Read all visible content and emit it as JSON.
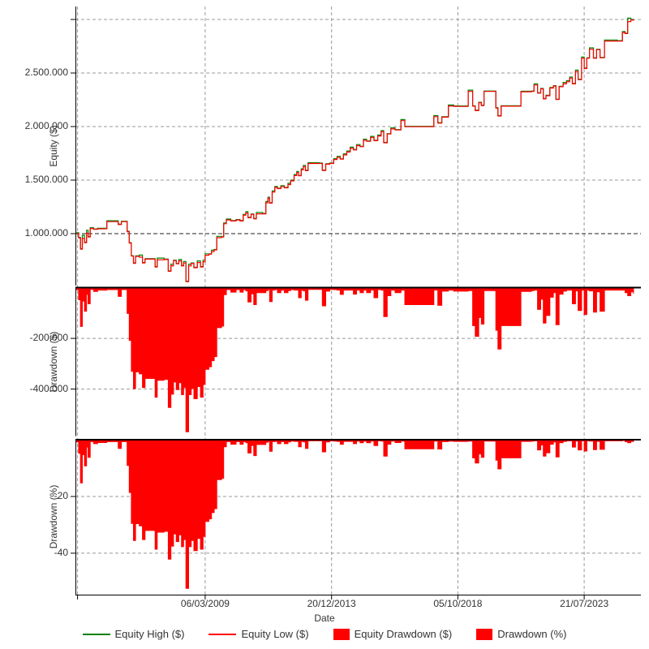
{
  "chart_data": {
    "type": "line",
    "description": "Backtest equity curve with drawdown panels",
    "xlabel": "Date",
    "x_unit": "decimal_year",
    "xlim": [
      2004.26,
      2025.7
    ],
    "grid": "dashed",
    "legend_position": "bottom",
    "x_ticks": [
      {
        "x": 2004.34,
        "label": ""
      },
      {
        "x": 2009.18,
        "label": "06/03/2009"
      },
      {
        "x": 2013.97,
        "label": "20/12/2013"
      },
      {
        "x": 2018.76,
        "label": "05/10/2018"
      },
      {
        "x": 2023.55,
        "label": "21/07/2023"
      }
    ],
    "x": [
      2004.3,
      2004.38,
      2004.45,
      2004.52,
      2004.6,
      2004.68,
      2004.74,
      2004.82,
      2004.95,
      2005.1,
      2005.45,
      2005.88,
      2006.0,
      2006.12,
      2006.22,
      2006.3,
      2006.38,
      2006.46,
      2006.54,
      2006.68,
      2006.8,
      2006.9,
      2007.15,
      2007.28,
      2007.36,
      2007.62,
      2007.78,
      2007.88,
      2007.98,
      2008.08,
      2008.18,
      2008.28,
      2008.36,
      2008.45,
      2008.55,
      2008.65,
      2008.75,
      2008.88,
      2009.0,
      2009.1,
      2009.18,
      2009.32,
      2009.42,
      2009.52,
      2009.62,
      2009.8,
      2009.88,
      2009.98,
      2010.15,
      2010.35,
      2010.5,
      2010.62,
      2010.72,
      2010.8,
      2010.92,
      2011.02,
      2011.12,
      2011.35,
      2011.48,
      2011.56,
      2011.62,
      2011.72,
      2011.82,
      2011.92,
      2012.05,
      2012.18,
      2012.32,
      2012.42,
      2012.55,
      2012.65,
      2012.72,
      2012.82,
      2012.9,
      2012.98,
      2013.08,
      2013.5,
      2013.62,
      2013.75,
      2013.9,
      2014.05,
      2014.18,
      2014.3,
      2014.42,
      2014.55,
      2014.68,
      2014.8,
      2014.92,
      2015.05,
      2015.18,
      2015.3,
      2015.45,
      2015.58,
      2015.72,
      2015.85,
      2015.95,
      2016.08,
      2016.22,
      2016.38,
      2016.6,
      2016.75,
      2017.75,
      2017.85,
      2018.0,
      2018.15,
      2018.4,
      2018.6,
      2019.15,
      2019.32,
      2019.42,
      2019.55,
      2019.65,
      2019.75,
      2020.1,
      2020.2,
      2020.28,
      2020.4,
      2021.05,
      2021.15,
      2021.55,
      2021.65,
      2021.78,
      2021.9,
      2022.0,
      2022.1,
      2022.25,
      2022.38,
      2022.48,
      2022.6,
      2022.75,
      2022.88,
      2023.0,
      2023.1,
      2023.22,
      2023.32,
      2023.45,
      2023.55,
      2023.65,
      2023.75,
      2023.9,
      2024.02,
      2024.15,
      2024.32,
      2024.8,
      2025.0,
      2025.1,
      2025.2,
      2025.32,
      2025.42
    ],
    "panels": [
      {
        "id": "equity",
        "ylabel": "Equity ($)",
        "ylim": [
          515000,
          3121000
        ],
        "yticks": [
          {
            "v": 3000000,
            "label": ""
          },
          {
            "v": 2500000,
            "label": "2.500.000"
          },
          {
            "v": 2000000,
            "label": "2.000.000"
          },
          {
            "v": 1500000,
            "label": "1.500.000"
          },
          {
            "v": 1000000,
            "label": "1.000.000",
            "emphasis": true
          }
        ],
        "series": [
          {
            "name": "Equity High ($)",
            "type": "line",
            "color": "#008000",
            "values": [
              1008000,
              965000,
              860000,
              985000,
              920000,
              1032000,
              972000,
              1055000,
              1044000,
              1050000,
              1120000,
              1089000,
              1116000,
              1116000,
              1022000,
              916000,
              794000,
              726000,
              792000,
              800000,
              730000,
              766000,
              766000,
              692000,
              772000,
              762000,
              652000,
              715000,
              752000,
              722000,
              758000,
              702000,
              740000,
              556000,
              715000,
              726000,
              686000,
              745000,
              692000,
              752000,
              812000,
              812000,
              845000,
              852000,
              975000,
              972000,
              1100000,
              1136000,
              1122000,
              1132000,
              1122000,
              1180000,
              1205000,
              1152000,
              1184000,
              1142000,
              1198000,
              1189000,
              1300000,
              1340000,
              1289000,
              1398000,
              1440000,
              1424000,
              1448000,
              1432000,
              1470000,
              1500000,
              1552000,
              1580000,
              1544000,
              1605000,
              1638000,
              1592000,
              1662000,
              1659000,
              1594000,
              1652000,
              1659000,
              1700000,
              1722000,
              1699000,
              1745000,
              1772000,
              1808000,
              1786000,
              1832000,
              1816000,
              1882000,
              1866000,
              1908000,
              1872000,
              1920000,
              1962000,
              1852000,
              1934000,
              1988000,
              1972000,
              2065000,
              2002000,
              2002000,
              2102000,
              2036000,
              2092000,
              2202000,
              2192000,
              2340000,
              2194000,
              2152000,
              2226000,
              2200000,
              2332000,
              2332000,
              2176000,
              2102000,
              2194000,
              2194000,
              2329000,
              2332000,
              2398000,
              2316000,
              2356000,
              2262000,
              2292000,
              2364000,
              2382000,
              2256000,
              2376000,
              2412000,
              2428000,
              2462000,
              2402000,
              2528000,
              2442000,
              2648000,
              2546000,
              2642000,
              2735000,
              2642000,
              2722000,
              2646000,
              2808000,
              2802000,
              2888000,
              2872000,
              3012000,
              3000000,
              2992000
            ]
          },
          {
            "name": "Equity Low ($)",
            "type": "line",
            "color": "#ff0000",
            "values": [
              1000000,
              960000,
              855000,
              955000,
              915000,
              1005000,
              968000,
              1048000,
              1040000,
              1045000,
              1112000,
              1085000,
              1112000,
              1112000,
              1018000,
              912000,
              790000,
              722000,
              788000,
              780000,
              726000,
              762000,
              762000,
              688000,
              755000,
              758000,
              648000,
              700000,
              748000,
              718000,
              745000,
              698000,
              726000,
              552000,
              698000,
              722000,
              682000,
              730000,
              688000,
              738000,
              798000,
              808000,
              832000,
              848000,
              962000,
              968000,
              1092000,
              1128000,
              1118000,
              1128000,
              1118000,
              1172000,
              1192000,
              1148000,
              1180000,
              1138000,
              1185000,
              1185000,
              1288000,
              1332000,
              1285000,
              1388000,
              1432000,
              1420000,
              1438000,
              1428000,
              1458000,
              1492000,
              1542000,
              1570000,
              1540000,
              1595000,
              1625000,
              1588000,
              1655000,
              1655000,
              1590000,
              1648000,
              1655000,
              1692000,
              1712000,
              1695000,
              1735000,
              1762000,
              1798000,
              1782000,
              1822000,
              1812000,
              1872000,
              1862000,
              1898000,
              1868000,
              1912000,
              1952000,
              1848000,
              1930000,
              1978000,
              1968000,
              2055000,
              1998000,
              1998000,
              2092000,
              2032000,
              2088000,
              2192000,
              2188000,
              2328000,
              2190000,
              2148000,
              2222000,
              2196000,
              2328000,
              2328000,
              2172000,
              2098000,
              2190000,
              2190000,
              2325000,
              2328000,
              2388000,
              2312000,
              2352000,
              2258000,
              2288000,
              2360000,
              2378000,
              2252000,
              2372000,
              2398000,
              2418000,
              2452000,
              2398000,
              2515000,
              2438000,
              2638000,
              2542000,
              2638000,
              2722000,
              2638000,
              2718000,
              2642000,
              2798000,
              2798000,
              2878000,
              2868000,
              2980000,
              2995000,
              2988000
            ]
          }
        ]
      },
      {
        "id": "drawdown_usd",
        "ylabel": "Drawdown ($)",
        "ylim": [
          -585000,
          0
        ],
        "yticks": [
          {
            "v": -200000,
            "label": "-200.000"
          },
          {
            "v": -400000,
            "label": "-400.000"
          }
        ],
        "series": [
          {
            "name": "Equity Drawdown ($)",
            "type": "area",
            "color": "#ff0000",
            "values": [
              -8000,
              -48000,
              -153000,
              -53000,
              -93000,
              -27000,
              -64000,
              -7000,
              -15000,
              -10000,
              -8000,
              -35000,
              -8000,
              -8000,
              -102000,
              -208000,
              -330000,
              -398000,
              -332000,
              -340000,
              -394000,
              -358000,
              -358000,
              -432000,
              -365000,
              -362000,
              -472000,
              -420000,
              -372000,
              -402000,
              -375000,
              -422000,
              -394000,
              -568000,
              -422000,
              -398000,
              -438000,
              -390000,
              -432000,
              -382000,
              -322000,
              -312000,
              -288000,
              -272000,
              -158000,
              -152000,
              -28000,
              -8000,
              -18000,
              -8000,
              -18000,
              -8000,
              -13000,
              -57000,
              -25000,
              -67000,
              -20000,
              -20000,
              -12000,
              -8000,
              -55000,
              -10000,
              -8000,
              -20000,
              -10000,
              -20000,
              -12000,
              -8000,
              -10000,
              -10000,
              -40000,
              -10000,
              -13000,
              -50000,
              -7000,
              -7000,
              -72000,
              -14000,
              -7000,
              -8000,
              -10000,
              -27000,
              -10000,
              -10000,
              -10000,
              -26000,
              -10000,
              -20000,
              -10000,
              -20000,
              -10000,
              -40000,
              -8000,
              -10000,
              -114000,
              -32000,
              -10000,
              -20000,
              -10000,
              -67000,
              -67000,
              -10000,
              -70000,
              -14000,
              -10000,
              -14000,
              -12000,
              -150000,
              -192000,
              -118000,
              -144000,
              -12000,
              -12000,
              -168000,
              -242000,
              -150000,
              -150000,
              -15000,
              -12000,
              -10000,
              -86000,
              -46000,
              -140000,
              -110000,
              -38000,
              -20000,
              -146000,
              -26000,
              -14000,
              -10000,
              -10000,
              -64000,
              -13000,
              -90000,
              -10000,
              -106000,
              -10000,
              -13000,
              -97000,
              -17000,
              -93000,
              -10000,
              -10000,
              -10000,
              -20000,
              -32000,
              -17000,
              -24000
            ]
          }
        ]
      },
      {
        "id": "drawdown_pct",
        "ylabel": "Drawdown (%)",
        "ylim": [
          -54.6,
          0
        ],
        "yticks": [
          {
            "v": -20,
            "label": "-20"
          },
          {
            "v": -40,
            "label": "-40"
          }
        ],
        "series": [
          {
            "name": "Drawdown (%)",
            "type": "area",
            "color": "#ff0000",
            "values": [
              -0.8,
              -4.8,
              -15.2,
              -5.3,
              -9.2,
              -2.6,
              -6.2,
              -0.7,
              -1.4,
              -1.0,
              -0.7,
              -3.1,
              -0.7,
              -0.7,
              -9.1,
              -18.6,
              -29.5,
              -35.5,
              -29.6,
              -30.4,
              -35.2,
              -32.0,
              -32.0,
              -38.6,
              -32.6,
              -32.3,
              -42.1,
              -37.5,
              -33.2,
              -35.9,
              -33.5,
              -37.7,
              -35.2,
              -52.4,
              -37.7,
              -35.5,
              -39.1,
              -34.8,
              -38.6,
              -34.1,
              -28.8,
              -27.9,
              -25.7,
              -24.3,
              -14.1,
              -13.6,
              -2.5,
              -0.7,
              -1.6,
              -0.7,
              -1.6,
              -0.7,
              -1.1,
              -4.7,
              -2.1,
              -5.6,
              -1.7,
              -1.7,
              -0.9,
              -0.6,
              -4.1,
              -0.7,
              -0.6,
              -1.4,
              -0.7,
              -1.4,
              -0.8,
              -0.5,
              -0.6,
              -0.6,
              -2.5,
              -0.6,
              -0.8,
              -3.1,
              -0.4,
              -0.4,
              -4.3,
              -0.8,
              -0.4,
              -0.5,
              -0.6,
              -1.6,
              -0.6,
              -0.6,
              -0.6,
              -1.4,
              -0.5,
              -1.1,
              -0.5,
              -1.1,
              -0.5,
              -2.1,
              -0.4,
              -0.5,
              -5.8,
              -1.6,
              -0.5,
              -1.0,
              -0.5,
              -3.2,
              -3.2,
              -0.5,
              -3.3,
              -0.7,
              -0.5,
              -0.6,
              -0.5,
              -6.4,
              -8.2,
              -5.0,
              -6.2,
              -0.5,
              -0.5,
              -7.2,
              -10.3,
              -6.4,
              -6.4,
              -0.6,
              -0.5,
              -0.4,
              -3.6,
              -1.9,
              -5.8,
              -4.6,
              -1.6,
              -0.8,
              -6.1,
              -1.1,
              -0.6,
              -0.4,
              -0.4,
              -2.6,
              -0.5,
              -3.6,
              -0.4,
              -4.0,
              -0.4,
              -0.5,
              -3.5,
              -0.6,
              -3.4,
              -0.4,
              -0.4,
              -0.3,
              -0.7,
              -1.1,
              -0.6,
              -0.8
            ]
          }
        ]
      }
    ],
    "legend": {
      "items": [
        {
          "label": "Equity High ($)",
          "swatch": "line",
          "color": "#008000"
        },
        {
          "label": "Equity Low ($)",
          "swatch": "line",
          "color": "#ff0000"
        },
        {
          "label": "Equity Drawdown ($)",
          "swatch": "square",
          "color": "#ff0000"
        },
        {
          "label": "Drawdown (%)",
          "swatch": "square",
          "color": "#ff0000"
        }
      ]
    },
    "colors": {
      "grid": "#999999",
      "grid_emphasis": "#222222",
      "axis": "#000000",
      "text": "#333333",
      "background": "#ffffff"
    }
  }
}
